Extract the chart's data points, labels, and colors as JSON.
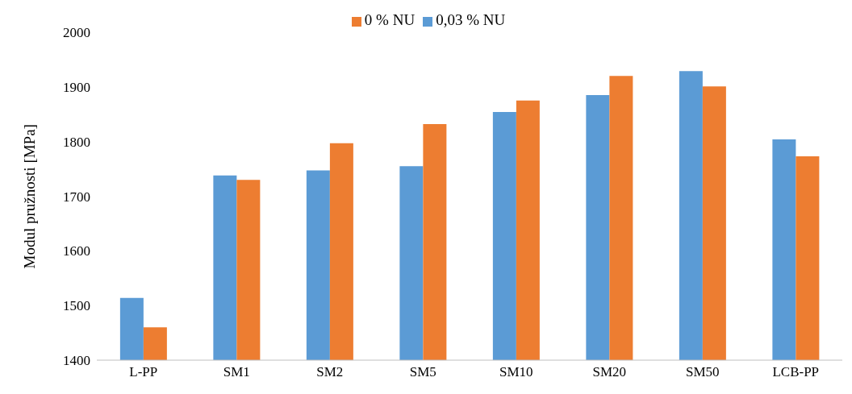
{
  "chart_data": {
    "type": "bar",
    "ylabel": "Modul pružnosti [MPa]",
    "categories": [
      "L-PP",
      "SM1",
      "SM2",
      "SM5",
      "SM10",
      "SM20",
      "SM50",
      "LCB-PP"
    ],
    "series": [
      {
        "name": "0,03 % NU",
        "color": "#5b9bd5",
        "values": [
          1514,
          1738,
          1747,
          1755,
          1854,
          1885,
          1929,
          1804
        ]
      },
      {
        "name": "0 % NU",
        "color": "#ed7d31",
        "values": [
          1460,
          1730,
          1797,
          1832,
          1875,
          1920,
          1901,
          1773
        ]
      }
    ],
    "ylim": [
      1400,
      2000
    ],
    "yticks": [
      1400,
      1500,
      1600,
      1700,
      1800,
      1900,
      2000
    ],
    "grid": false,
    "legend": "top"
  }
}
